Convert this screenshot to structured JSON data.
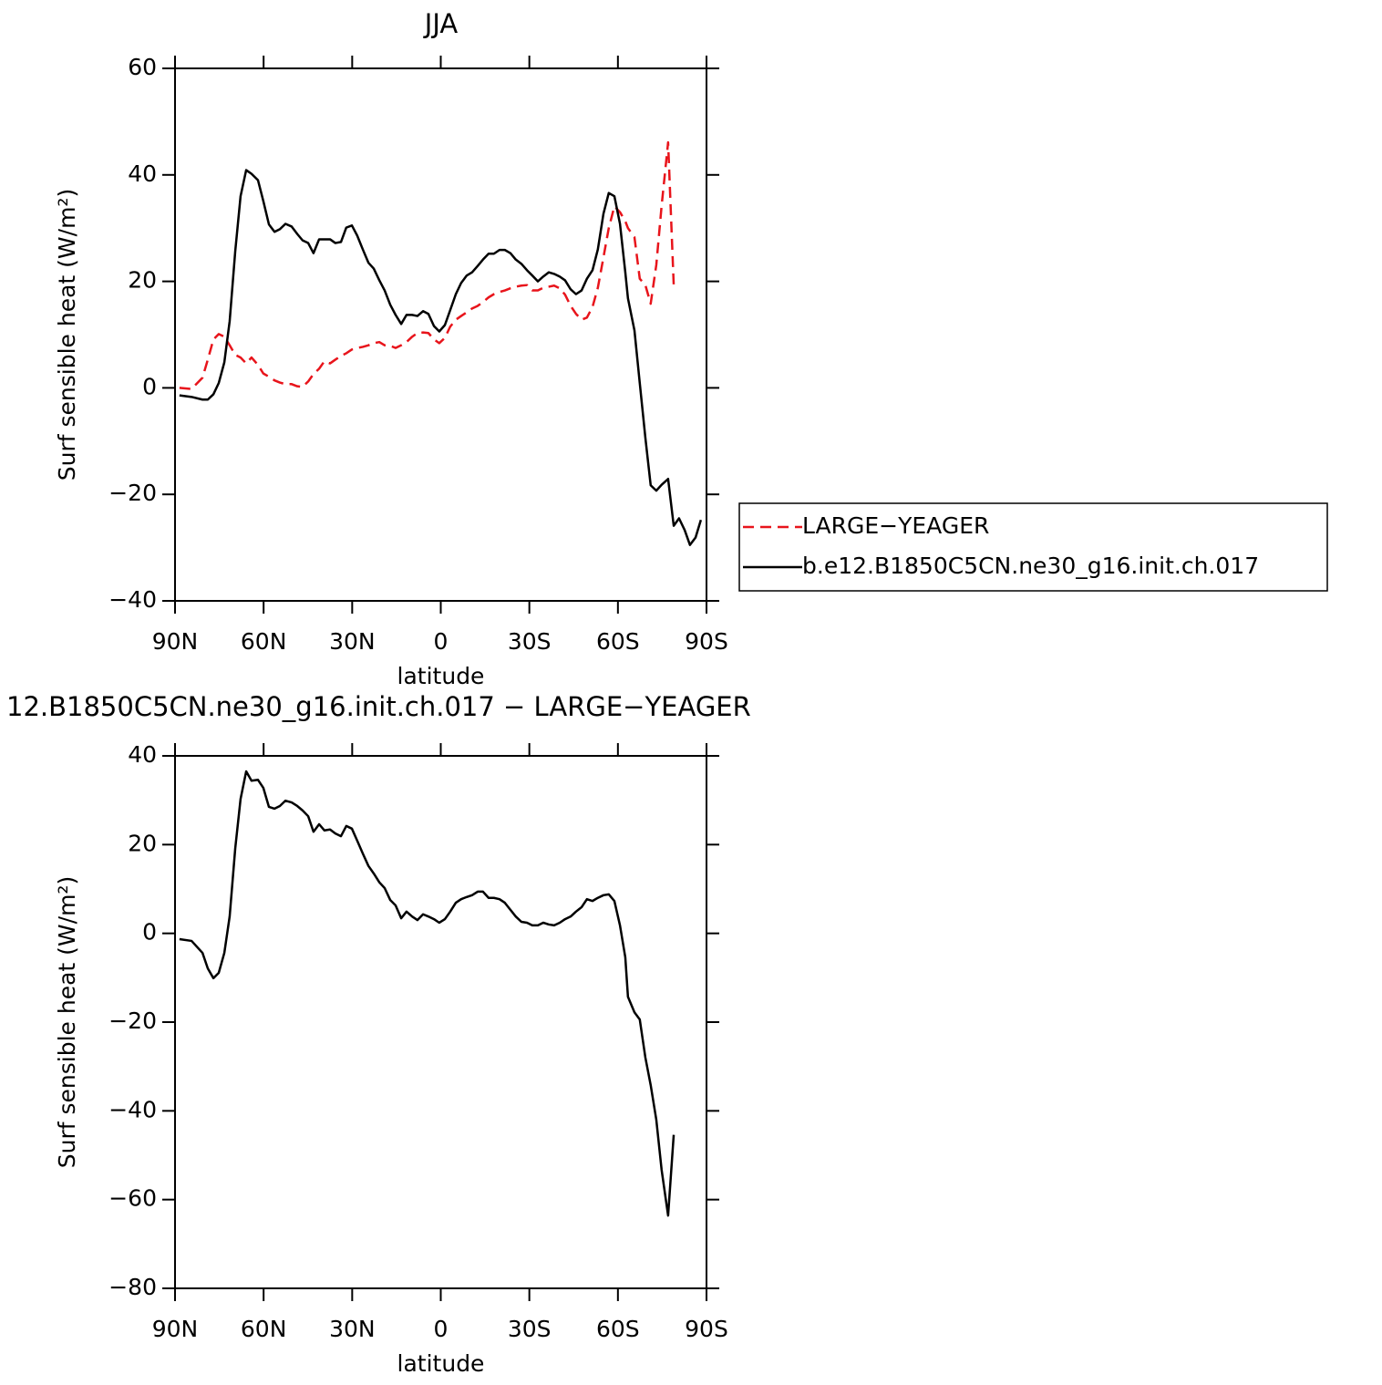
{
  "chart_data": [
    {
      "type": "line",
      "title": "JJA",
      "xlabel": "latitude",
      "ylabel": "Surf sensible heat (W/m²)",
      "x": [
        88.5,
        84.4,
        80.7,
        78.9,
        77.0,
        75.2,
        73.3,
        71.5,
        69.6,
        67.8,
        65.9,
        64.1,
        61.9,
        60.1,
        58.2,
        56.3,
        54.5,
        52.6,
        50.5,
        48.6,
        46.8,
        44.9,
        43.1,
        41.2,
        39.4,
        37.5,
        35.7,
        33.8,
        32.0,
        30.1,
        28.3,
        26.4,
        24.5,
        22.7,
        20.8,
        19.0,
        17.1,
        15.3,
        13.4,
        11.6,
        9.7,
        7.9,
        6.0,
        4.2,
        2.3,
        0.5,
        -1.4,
        -3.2,
        -5.1,
        -6.9,
        -8.8,
        -10.6,
        -12.5,
        -14.3,
        -16.2,
        -18.0,
        -19.9,
        -21.7,
        -23.6,
        -25.4,
        -27.3,
        -29.2,
        -31.0,
        -32.9,
        -34.7,
        -36.6,
        -38.4,
        -40.3,
        -42.1,
        -44.0,
        -45.8,
        -47.7,
        -49.5,
        -51.4,
        -53.2,
        -55.1,
        -56.9,
        -58.8,
        -60.7,
        -62.5,
        -63.4,
        -65.6,
        -67.4,
        -69.3,
        -71.1,
        -73.0,
        -74.8,
        -77.0,
        -78.9,
        -80.7,
        -82.6,
        -84.4,
        -86.3,
        -88.1
      ],
      "series": [
        {
          "name": "LARGE−YEAGER",
          "color": "#e8141b",
          "line_style": "dashed",
          "values": [
            0,
            -0.2,
            1.9,
            5.3,
            9.1,
            10.1,
            9.6,
            8.0,
            6.2,
            5.7,
            4.6,
            5.7,
            4.3,
            2.7,
            2.1,
            1.4,
            1.0,
            0.7,
            0.7,
            0.3,
            0.2,
            1.2,
            2.6,
            3.6,
            5.0,
            4.6,
            5.3,
            6.0,
            6.5,
            7.2,
            7.5,
            7.7,
            8.0,
            8.4,
            8.6,
            8.0,
            7.9,
            7.5,
            8.0,
            8.6,
            9.6,
            10.3,
            10.4,
            10.3,
            9.1,
            8.4,
            9.4,
            11.5,
            12.8,
            13.5,
            14.2,
            14.9,
            15.4,
            16.1,
            17.0,
            17.6,
            18.0,
            18.3,
            18.7,
            19.0,
            19.2,
            19.3,
            18.3,
            18.3,
            18.8,
            19.0,
            19.2,
            18.7,
            17.5,
            15.4,
            13.9,
            12.8,
            13.2,
            15.2,
            18.8,
            24.5,
            30.0,
            34.1,
            33.0,
            31.3,
            30.0,
            28.3,
            20.5,
            19.3,
            15.8,
            23.1,
            34.2,
            46.1,
            19.3,
            null,
            null,
            null,
            null,
            null
          ]
        },
        {
          "name": "b.e12.B1850C5CN.ne30_g16.init.ch.017",
          "color": "#000000",
          "line_style": "solid",
          "values": [
            -1.4,
            -1.7,
            -2.2,
            -2.2,
            -1.2,
            0.9,
            4.8,
            12.5,
            25.7,
            36.0,
            40.9,
            40.2,
            39.0,
            35.1,
            30.7,
            29.3,
            29.8,
            30.8,
            30.3,
            28.9,
            27.7,
            27.2,
            25.3,
            27.9,
            27.9,
            27.9,
            27.2,
            27.4,
            30.1,
            30.5,
            28.6,
            26.0,
            23.5,
            22.4,
            20.2,
            18.3,
            15.6,
            13.7,
            12.0,
            13.7,
            13.7,
            13.5,
            14.4,
            13.9,
            11.6,
            10.6,
            11.8,
            14.6,
            17.6,
            19.7,
            21.1,
            21.7,
            22.9,
            24.1,
            25.2,
            25.2,
            25.9,
            25.9,
            25.3,
            24.1,
            23.3,
            22.1,
            21.1,
            20.0,
            20.9,
            21.7,
            21.4,
            20.9,
            20.2,
            18.5,
            17.6,
            18.3,
            20.5,
            22.1,
            26.0,
            32.7,
            36.6,
            36.0,
            30.8,
            21.7,
            16.8,
            10.8,
            0.9,
            -9.4,
            -18.3,
            -19.3,
            -18.2,
            -17.1,
            -25.9,
            -24.5,
            -26.7,
            -29.5,
            -28.1,
            -24.8
          ]
        }
      ],
      "xlim": [
        90,
        -90
      ],
      "xticks": [
        {
          "value": 90,
          "label": "90N"
        },
        {
          "value": 60,
          "label": "60N"
        },
        {
          "value": 30,
          "label": "30N"
        },
        0,
        {
          "value": -30,
          "label": "30S"
        },
        {
          "value": -60,
          "label": "60S"
        },
        {
          "value": -90,
          "label": "90S"
        }
      ],
      "ylim": [
        -40,
        60
      ],
      "yticks": [
        {
          "value": -40,
          "label": "−40"
        },
        {
          "value": -20,
          "label": "−20"
        },
        0,
        20,
        40,
        60
      ],
      "legend": "outside-right"
    },
    {
      "type": "line",
      "title": "12.B1850C5CN.ne30_g16.init.ch.017 − LARGE−YEAGER",
      "xlabel": "latitude",
      "ylabel": "Surf sensible heat (W/m²)",
      "x": [
        88.5,
        84.4,
        80.7,
        78.9,
        77.0,
        75.2,
        73.3,
        71.5,
        69.6,
        67.8,
        65.9,
        64.1,
        61.9,
        60.1,
        58.2,
        56.3,
        54.5,
        52.6,
        50.5,
        48.6,
        46.8,
        44.9,
        43.1,
        41.2,
        39.4,
        37.5,
        35.7,
        33.8,
        32.0,
        30.1,
        28.3,
        26.4,
        24.5,
        22.7,
        20.8,
        19.0,
        17.1,
        15.3,
        13.4,
        11.6,
        9.7,
        7.9,
        6.0,
        4.2,
        2.3,
        0.5,
        -1.4,
        -3.2,
        -5.1,
        -6.9,
        -8.8,
        -10.6,
        -12.5,
        -14.3,
        -16.2,
        -18.0,
        -19.9,
        -21.7,
        -23.6,
        -25.4,
        -27.3,
        -29.2,
        -31.0,
        -32.9,
        -34.7,
        -36.6,
        -38.4,
        -40.3,
        -42.1,
        -44.0,
        -45.8,
        -47.7,
        -49.5,
        -51.4,
        -53.2,
        -55.1,
        -56.9,
        -58.8,
        -60.7,
        -62.5,
        -63.4,
        -65.6,
        -67.4,
        -69.3,
        -71.1,
        -73.0,
        -74.8,
        -77.0,
        -78.9,
        -80.7,
        -82.6,
        -84.4,
        -86.3,
        -88.1
      ],
      "color": "#000000",
      "values": [
        -1.3,
        -1.7,
        -4.4,
        -7.9,
        -10.1,
        -8.9,
        -4.4,
        3.8,
        19.2,
        30.3,
        36.5,
        34.4,
        34.6,
        32.8,
        28.5,
        28.1,
        28.7,
        29.9,
        29.5,
        28.7,
        27.7,
        26.4,
        22.9,
        24.6,
        23.2,
        23.4,
        22.5,
        21.9,
        24.2,
        23.6,
        20.9,
        18.0,
        15.2,
        13.5,
        11.5,
        10.2,
        7.5,
        6.3,
        3.4,
        4.9,
        3.8,
        3.0,
        4.3,
        3.8,
        3.2,
        2.4,
        3.2,
        4.9,
        6.9,
        7.7,
        8.2,
        8.6,
        9.4,
        9.4,
        8.0,
        8.0,
        7.7,
        6.9,
        5.3,
        3.8,
        2.6,
        2.4,
        1.8,
        1.8,
        2.4,
        2.0,
        1.8,
        2.4,
        3.2,
        3.8,
        4.9,
        5.9,
        7.7,
        7.3,
        8.0,
        8.6,
        8.8,
        7.3,
        1.8,
        -5.4,
        -14.3,
        -17.8,
        -19.4,
        -28.0,
        -34.2,
        -42.0,
        -53.3,
        -63.6,
        -45.4,
        null,
        null,
        null,
        null,
        null
      ],
      "xlim": [
        90,
        -90
      ],
      "xticks": [
        {
          "value": 90,
          "label": "90N"
        },
        {
          "value": 60,
          "label": "60N"
        },
        {
          "value": 30,
          "label": "30N"
        },
        0,
        {
          "value": -30,
          "label": "30S"
        },
        {
          "value": -60,
          "label": "60S"
        },
        {
          "value": -90,
          "label": "90S"
        }
      ],
      "ylim": [
        -80,
        40
      ],
      "yticks": [
        {
          "value": -80,
          "label": "−80"
        },
        {
          "value": -60,
          "label": "−60"
        },
        {
          "value": -40,
          "label": "−40"
        },
        {
          "value": -20,
          "label": "−20"
        },
        0,
        20,
        40
      ]
    }
  ]
}
